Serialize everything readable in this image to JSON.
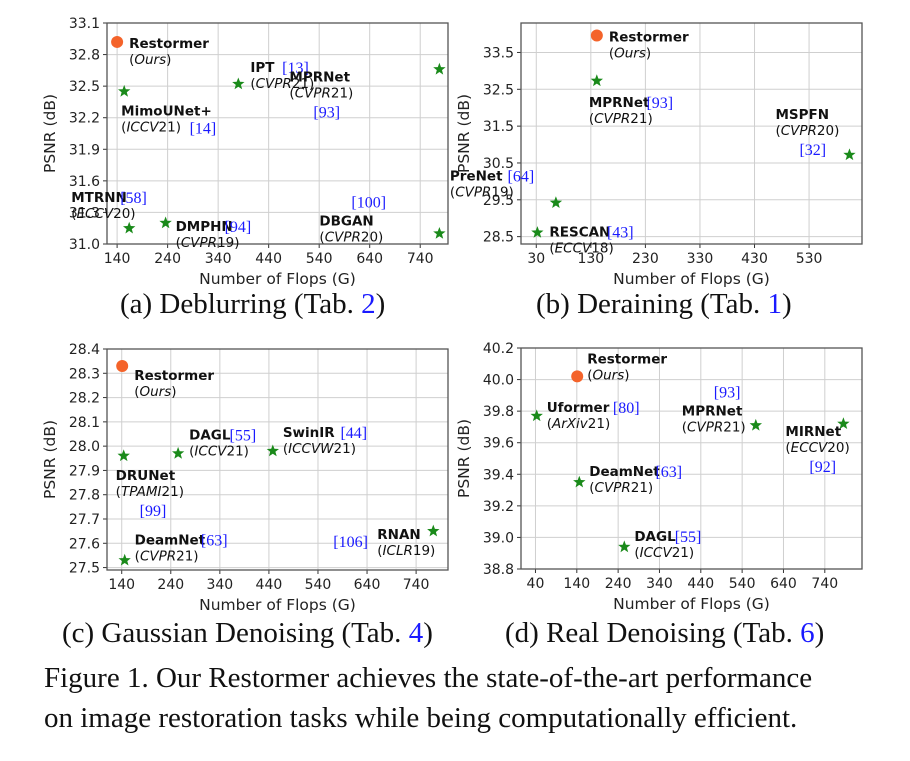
{
  "figure": {
    "caption_line1": "Figure 1. Our Restormer achieves the state-of-the-art performance",
    "caption_line2": "on image restoration tasks while being computationally efficient.",
    "marker_colors": {
      "ours": "#f4632a",
      "others": "#1a8a1a"
    },
    "ref_color": "#1a1aff"
  },
  "subcaptions": [
    {
      "prefix": "(a) Deblurring (Tab. ",
      "ref": "2",
      "suffix": ")"
    },
    {
      "prefix": "(b) Deraining (Tab. ",
      "ref": "1",
      "suffix": ")"
    },
    {
      "prefix": "(c) Gaussian Denoising (Tab. ",
      "ref": "4",
      "suffix": ")"
    },
    {
      "prefix": "(d) Real Denoising (Tab. ",
      "ref": "6",
      "suffix": ")"
    }
  ],
  "chart_data": [
    {
      "type": "scatter",
      "title": "(a) Deblurring (Tab. 2)",
      "xlabel": "Number of Flops (G)",
      "ylabel": "PSNR (dB)",
      "xlim": [
        120,
        795
      ],
      "ylim": [
        31.0,
        33.1
      ],
      "xticks": [
        140,
        240,
        340,
        440,
        540,
        640,
        740
      ],
      "yticks": [
        "31.0",
        "31.3",
        "31.6",
        "31.9",
        "32.2",
        "32.5",
        "32.8",
        "33.1"
      ],
      "grid": true,
      "points": [
        {
          "name": "Restormer",
          "venue": "Ours",
          "ref": "",
          "x": 140,
          "y": 32.92,
          "ours": true
        },
        {
          "name": "MimoUNet+",
          "venue": "ICCV21",
          "ref": "14",
          "x": 154,
          "y": 32.45
        },
        {
          "name": "IPT",
          "venue": "CVPR21",
          "ref": "13",
          "x": 380,
          "y": 32.52
        },
        {
          "name": "MPRNet",
          "venue": "CVPR21",
          "ref": "93",
          "x": 778,
          "y": 32.66
        },
        {
          "name": "MTRNN",
          "venue": "ECCV20",
          "ref": "58",
          "x": 164,
          "y": 31.15
        },
        {
          "name": "DMPHN",
          "venue": "CVPR19",
          "ref": "94",
          "x": 236,
          "y": 31.2
        },
        {
          "name": "DBGAN",
          "venue": "CVPR20",
          "ref": "100",
          "x": 778,
          "y": 31.1
        }
      ]
    },
    {
      "type": "scatter",
      "title": "(b) Deraining (Tab. 1)",
      "xlabel": "Number of Flops (G)",
      "ylabel": "PSNR (dB)",
      "xlim": [
        2,
        627
      ],
      "ylim": [
        28.3,
        34.3
      ],
      "xticks": [
        30,
        130,
        230,
        330,
        430,
        530
      ],
      "yticks": [
        "28.5",
        "29.5",
        "30.5",
        "31.5",
        "32.5",
        "33.5"
      ],
      "grid": true,
      "points": [
        {
          "name": "Restormer",
          "venue": "Ours",
          "ref": "",
          "x": 141,
          "y": 33.96,
          "ours": true
        },
        {
          "name": "MPRNet",
          "venue": "CVPR21",
          "ref": "93",
          "x": 141,
          "y": 32.73
        },
        {
          "name": "MSPFN",
          "venue": "CVPR20",
          "ref": "32",
          "x": 604,
          "y": 30.72
        },
        {
          "name": "PreNet",
          "venue": "CVPR19",
          "ref": "64",
          "x": 66,
          "y": 29.42
        },
        {
          "name": "RESCAN",
          "venue": "ECCV18",
          "ref": "43",
          "x": 32,
          "y": 28.61
        }
      ]
    },
    {
      "type": "scatter",
      "title": "(c) Gaussian Denoising (Tab. 4)",
      "xlabel": "Number of Flops (G)",
      "ylabel": "PSNR (dB)",
      "xlim": [
        110,
        805
      ],
      "ylim": [
        27.49,
        28.4
      ],
      "xticks": [
        140,
        240,
        340,
        440,
        540,
        640,
        740
      ],
      "yticks": [
        "27.5",
        "27.6",
        "27.7",
        "27.8",
        "27.9",
        "28.0",
        "28.1",
        "28.2",
        "28.3",
        "28.4"
      ],
      "grid": true,
      "points": [
        {
          "name": "Restormer",
          "venue": "Ours",
          "ref": "",
          "x": 141,
          "y": 28.33,
          "ours": true
        },
        {
          "name": "DRUNet",
          "venue": "TPAMI21",
          "ref": "99",
          "x": 144,
          "y": 27.96
        },
        {
          "name": "DAGL",
          "venue": "ICCV21",
          "ref": "55",
          "x": 255,
          "y": 27.97
        },
        {
          "name": "SwinIR",
          "venue": "ICCVW21",
          "ref": "44",
          "x": 448,
          "y": 27.98
        },
        {
          "name": "DeamNet",
          "venue": "CVPR21",
          "ref": "63",
          "x": 146,
          "y": 27.53
        },
        {
          "name": "RNAN",
          "venue": "ICLR19",
          "ref": "106",
          "x": 775,
          "y": 27.65
        }
      ]
    },
    {
      "type": "scatter",
      "title": "(d) Real Denoising (Tab. 6)",
      "xlabel": "Number of Flops (G)",
      "ylabel": "PSNR (dB)",
      "xlim": [
        5,
        830
      ],
      "ylim": [
        38.8,
        40.2
      ],
      "xticks": [
        40,
        140,
        240,
        340,
        440,
        540,
        640,
        740
      ],
      "yticks": [
        "38.8",
        "39.0",
        "39.2",
        "39.4",
        "39.6",
        "39.8",
        "40.0",
        "40.2"
      ],
      "grid": true,
      "points": [
        {
          "name": "Restormer",
          "venue": "Ours",
          "ref": "",
          "x": 141,
          "y": 40.02,
          "ours": true
        },
        {
          "name": "Uformer",
          "venue": "ArXiv21",
          "ref": "80",
          "x": 43,
          "y": 39.77
        },
        {
          "name": "MPRNet",
          "venue": "CVPR21",
          "ref": "93",
          "x": 573,
          "y": 39.71
        },
        {
          "name": "MIRNet",
          "venue": "ECCV20",
          "ref": "92",
          "x": 785,
          "y": 39.72
        },
        {
          "name": "DeamNet",
          "venue": "CVPR21",
          "ref": "63",
          "x": 146,
          "y": 39.35
        },
        {
          "name": "DAGL",
          "venue": "ICCV21",
          "ref": "55",
          "x": 255,
          "y": 38.94
        }
      ]
    }
  ]
}
